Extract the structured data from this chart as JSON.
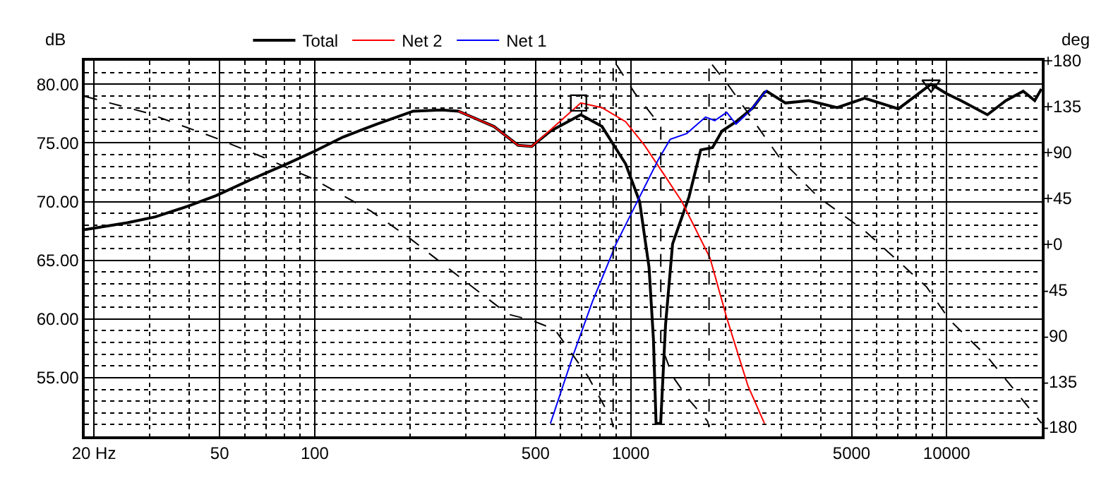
{
  "chart_data": {
    "type": "line",
    "ylabel": "dB",
    "y2label": "deg",
    "xlim": [
      18.7,
      20000
    ],
    "ylim": [
      50,
      82
    ],
    "y2lim": [
      -189,
      180
    ],
    "log": "x",
    "xticks": [
      {
        "value": 20,
        "label": "20 Hz"
      },
      50,
      100,
      500,
      1000,
      5000,
      10000
    ],
    "yticks": [
      {
        "value": 55,
        "label": "55.00"
      },
      {
        "value": 60,
        "label": "60.00"
      },
      {
        "value": 65,
        "label": "65.00"
      },
      {
        "value": 70,
        "label": "70.00"
      },
      {
        "value": 75,
        "label": "75.00"
      },
      {
        "value": 80,
        "label": "80.00"
      }
    ],
    "y2ticks": [
      {
        "value": 180,
        "label": "+180"
      },
      {
        "value": 135,
        "label": "+135"
      },
      {
        "value": 90,
        "label": "+90"
      },
      {
        "value": 45,
        "label": "+45"
      },
      {
        "value": 0,
        "label": "+0"
      },
      -45,
      -90,
      -135,
      -180
    ],
    "grid": true,
    "legend": "top",
    "line_style": "solid",
    "marker": "none",
    "series": [
      {
        "name": "Total",
        "color": "#000000",
        "x": [
          18.7,
          25.5,
          31.3,
          39.6,
          48.7,
          64.3,
          81.4,
          100,
          123,
          157,
          205,
          252,
          285,
          369,
          440,
          486,
          557,
          695,
          811,
          964,
          1067,
          1143,
          1180,
          1203,
          1244,
          1289,
          1357,
          1529,
          1666,
          1815,
          1944,
          2154,
          2437,
          2650,
          2695,
          3090,
          3665,
          4500,
          5500,
          7030,
          8930,
          9980,
          11100,
          13460,
          15400,
          17470,
          19000,
          19950
        ],
        "values": [
          67.6,
          68.2,
          68.7,
          69.6,
          70.5,
          72.0,
          73.2,
          74.3,
          75.5,
          76.6,
          77.7,
          77.8,
          77.7,
          76.4,
          74.8,
          74.7,
          76.0,
          77.4,
          76.4,
          73.2,
          70.0,
          64.4,
          58.3,
          51.1,
          51.1,
          59.5,
          66.4,
          70.4,
          74.4,
          74.6,
          76.0,
          76.8,
          78.0,
          79.3,
          79.4,
          78.4,
          78.6,
          78.0,
          78.8,
          77.9,
          80.0,
          79.2,
          78.6,
          77.4,
          78.6,
          79.4,
          78.6,
          79.6
        ]
      },
      {
        "name": "Net 2",
        "color": "#ff0000",
        "x": [
          285,
          369,
          440,
          486,
          557,
          695,
          811,
          964,
          1105,
          1268,
          1452,
          1782,
          2013,
          2350,
          2650
        ],
        "values": [
          77.7,
          76.4,
          74.8,
          74.7,
          76.1,
          78.4,
          78.0,
          76.8,
          74.8,
          72.4,
          70.0,
          65.2,
          60.1,
          54.3,
          51.1
        ]
      },
      {
        "name": "Net 1",
        "color": "#0000ff",
        "x": [
          557,
          661,
          757,
          899,
          1031,
          1224,
          1333,
          1504,
          1725,
          1845,
          2013,
          2154,
          2381,
          2695
        ],
        "values": [
          51.1,
          57.1,
          61.5,
          66.4,
          69.6,
          73.6,
          75.3,
          75.8,
          77.2,
          76.9,
          77.6,
          76.6,
          77.7,
          79.5
        ]
      },
      {
        "color": "#000000",
        "axis": "y2",
        "line_style": "dashed",
        "x": [
          18.7,
          29.3,
          48.7,
          68.9,
          98.7,
          151,
          199,
          300,
          409,
          486,
          575,
          732,
          869,
          880,
          880,
          906,
          1031,
          1180,
          1245,
          1245,
          1289,
          1357,
          1529,
          1750,
          1770,
          1770,
          2047,
          2986,
          3925,
          5500,
          8630,
          10240,
          13460,
          19950
        ],
        "values": [
          145,
          129,
          104,
          85,
          64,
          32,
          6,
          -37,
          -69,
          -75,
          -84,
          -130,
          -172,
          -180,
          180,
          175,
          148,
          125,
          115,
          -100,
          -111,
          -130,
          -153,
          -174,
          -180,
          180,
          155,
          83,
          46,
          13,
          -42,
          -75,
          -111,
          -176
        ]
      },
      {
        "type": "scatter",
        "marker": "square",
        "color": "#000000",
        "x": [
          684
        ],
        "values": [
          78.4
        ]
      },
      {
        "type": "scatter",
        "marker": "triangle",
        "color": "#000000",
        "x": [
          8930
        ],
        "values": [
          80.0
        ]
      }
    ]
  }
}
